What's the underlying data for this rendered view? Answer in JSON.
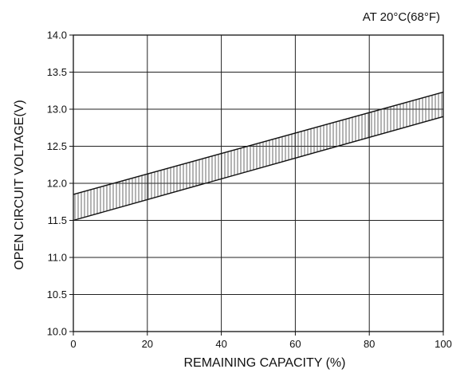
{
  "chart_data": {
    "type": "area",
    "annotation": "AT 20°C(68°F)",
    "xlabel": "REMAINING CAPACITY (%)",
    "ylabel": "OPEN CIRCUIT VOLTAGE(V)",
    "xlim": [
      0,
      100
    ],
    "ylim": [
      10.0,
      14.0
    ],
    "x_ticks": [
      "0",
      "20",
      "40",
      "60",
      "80",
      "100"
    ],
    "y_ticks": [
      "10.0",
      "10.5",
      "11.0",
      "11.5",
      "12.0",
      "12.5",
      "13.0",
      "13.5",
      "14.0"
    ],
    "grid": true,
    "fill_pattern": "vertical-hatch",
    "band": {
      "x": [
        0,
        100
      ],
      "lower": [
        11.5,
        12.9
      ],
      "upper": [
        11.85,
        13.23
      ]
    },
    "colors": {
      "line": "#111111",
      "hatch": "#444444"
    }
  }
}
